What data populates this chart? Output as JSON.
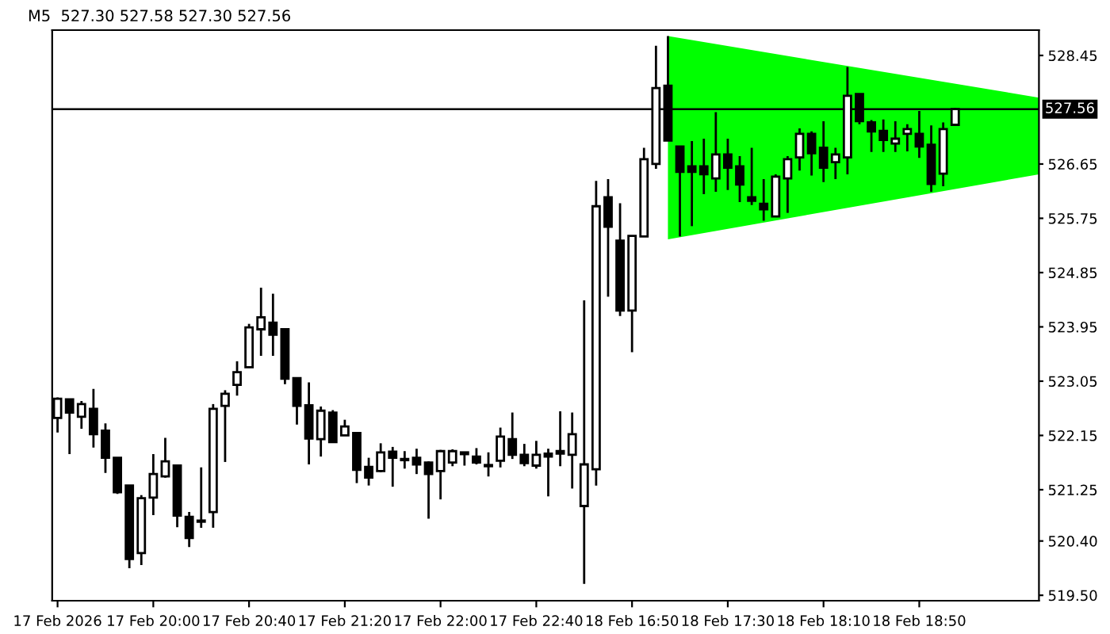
{
  "chart_data": {
    "type": "candlestick",
    "title": "M5  527.30 527.58 527.30 527.56",
    "categories": [
      "17 Feb 2026",
      null,
      null,
      null,
      null,
      null,
      null,
      null,
      "17 Feb 20:00",
      null,
      null,
      null,
      null,
      null,
      null,
      null,
      "17 Feb 20:40",
      null,
      null,
      null,
      null,
      null,
      null,
      null,
      "17 Feb 21:20",
      null,
      null,
      null,
      null,
      null,
      null,
      null,
      "17 Feb 22:00",
      null,
      null,
      null,
      null,
      null,
      null,
      null,
      "17 Feb 22:40",
      null,
      null,
      null,
      null,
      null,
      null,
      null,
      "18 Feb 16:50",
      null,
      null,
      null,
      null,
      null,
      null,
      null,
      "18 Feb 17:30",
      null,
      null,
      null,
      null,
      null,
      null,
      null,
      "18 Feb 18:10",
      null,
      null,
      null,
      null,
      null,
      null,
      null,
      "18 Feb 18:50",
      null,
      null,
      null,
      null,
      null,
      null,
      null,
      null,
      null,
      null
    ],
    "color": "#000000",
    "ohlc": [
      [
        522.44,
        522.78,
        522.2,
        522.76
      ],
      [
        522.75,
        522.76,
        521.84,
        522.53
      ],
      [
        522.46,
        522.72,
        522.26,
        522.67
      ],
      [
        522.59,
        522.92,
        521.95,
        522.17
      ],
      [
        522.23,
        522.35,
        521.53,
        521.78
      ],
      [
        521.78,
        521.78,
        521.18,
        521.21
      ],
      [
        521.32,
        521.32,
        519.95,
        520.1
      ],
      [
        520.2,
        521.16,
        520.0,
        521.11
      ],
      [
        521.12,
        521.84,
        520.83,
        521.51
      ],
      [
        521.47,
        522.11,
        521.45,
        521.72
      ],
      [
        521.65,
        521.66,
        520.63,
        520.82
      ],
      [
        520.8,
        520.88,
        520.3,
        520.45
      ],
      [
        520.72,
        521.62,
        520.62,
        520.74
      ],
      [
        520.88,
        522.67,
        520.62,
        522.59
      ],
      [
        522.64,
        522.9,
        521.71,
        522.84
      ],
      [
        522.99,
        523.38,
        522.81,
        523.2
      ],
      [
        523.28,
        524.0,
        523.28,
        523.94
      ],
      [
        523.91,
        524.6,
        523.47,
        524.11
      ],
      [
        524.02,
        524.5,
        523.47,
        523.82
      ],
      [
        523.91,
        523.91,
        523.0,
        523.09
      ],
      [
        523.1,
        523.1,
        522.33,
        522.64
      ],
      [
        522.65,
        523.03,
        521.67,
        522.1
      ],
      [
        522.09,
        522.63,
        521.8,
        522.56
      ],
      [
        522.53,
        522.57,
        522.04,
        522.04
      ],
      [
        522.15,
        522.41,
        522.15,
        522.3
      ],
      [
        522.19,
        522.19,
        521.36,
        521.58
      ],
      [
        521.63,
        521.78,
        521.32,
        521.45
      ],
      [
        521.56,
        522.02,
        521.54,
        521.87
      ],
      [
        521.88,
        521.96,
        521.3,
        521.78
      ],
      [
        521.76,
        521.89,
        521.6,
        521.74
      ],
      [
        521.78,
        521.93,
        521.51,
        521.67
      ],
      [
        521.7,
        521.72,
        520.77,
        521.51
      ],
      [
        521.56,
        521.91,
        521.09,
        521.89
      ],
      [
        521.7,
        521.92,
        521.64,
        521.89
      ],
      [
        521.87,
        521.88,
        521.65,
        521.84
      ],
      [
        521.8,
        521.94,
        521.67,
        521.7
      ],
      [
        521.66,
        521.87,
        521.47,
        521.64
      ],
      [
        521.73,
        522.28,
        521.62,
        522.13
      ],
      [
        522.09,
        522.53,
        521.76,
        521.83
      ],
      [
        521.83,
        522.01,
        521.64,
        521.69
      ],
      [
        521.65,
        522.06,
        521.6,
        521.83
      ],
      [
        521.85,
        521.93,
        521.14,
        521.8
      ],
      [
        521.89,
        522.55,
        521.64,
        521.85
      ],
      [
        521.83,
        522.53,
        521.27,
        522.17
      ],
      [
        520.98,
        524.39,
        519.69,
        521.67
      ],
      [
        521.59,
        526.37,
        521.32,
        525.95
      ],
      [
        526.1,
        526.4,
        524.45,
        525.61
      ],
      [
        525.38,
        526.0,
        524.13,
        524.22
      ],
      [
        524.22,
        525.46,
        523.53,
        525.46
      ],
      [
        525.45,
        526.92,
        525.45,
        526.73
      ],
      [
        526.65,
        528.61,
        526.57,
        527.91
      ],
      [
        527.95,
        528.77,
        527.04,
        527.04
      ],
      [
        526.94,
        526.94,
        525.45,
        526.52
      ],
      [
        526.61,
        527.03,
        525.62,
        526.52
      ],
      [
        526.61,
        527.07,
        526.15,
        526.48
      ],
      [
        526.41,
        527.51,
        526.19,
        526.81
      ],
      [
        526.81,
        527.07,
        526.22,
        526.59
      ],
      [
        526.61,
        526.78,
        526.02,
        526.31
      ],
      [
        526.1,
        526.92,
        525.97,
        526.04
      ],
      [
        525.99,
        526.4,
        525.71,
        525.9
      ],
      [
        525.78,
        526.48,
        525.78,
        526.44
      ],
      [
        526.41,
        526.78,
        525.84,
        526.73
      ],
      [
        526.76,
        527.24,
        526.54,
        527.15
      ],
      [
        527.15,
        527.19,
        526.46,
        526.83
      ],
      [
        526.92,
        527.36,
        526.35,
        526.59
      ],
      [
        526.68,
        526.92,
        526.4,
        526.81
      ],
      [
        526.76,
        528.26,
        526.48,
        527.78
      ],
      [
        527.81,
        527.81,
        527.31,
        527.36
      ],
      [
        527.34,
        527.38,
        526.85,
        527.19
      ],
      [
        527.2,
        527.39,
        526.85,
        527.05
      ],
      [
        526.99,
        527.36,
        526.85,
        527.07
      ],
      [
        527.15,
        527.31,
        526.86,
        527.23
      ],
      [
        527.15,
        527.53,
        526.75,
        526.94
      ],
      [
        526.97,
        527.29,
        526.19,
        526.32
      ],
      [
        526.49,
        527.34,
        526.28,
        527.23
      ],
      [
        527.3,
        527.58,
        527.3,
        527.56
      ],
      null,
      null,
      null,
      null,
      null,
      null,
      null
    ],
    "series": [
      {
        "type": "area",
        "color": "#00ff00",
        "values": [
          null,
          null,
          null,
          null,
          null,
          null,
          null,
          null,
          null,
          null,
          null,
          null,
          null,
          null,
          null,
          null,
          null,
          null,
          null,
          null,
          null,
          null,
          null,
          null,
          null,
          null,
          null,
          null,
          null,
          null,
          null,
          null,
          null,
          null,
          null,
          null,
          null,
          null,
          null,
          null,
          null,
          null,
          null,
          null,
          null,
          null,
          null,
          null,
          null,
          null,
          null,
          null,
          null,
          null,
          null,
          null,
          null,
          null,
          null,
          null,
          null,
          null,
          null,
          null,
          null,
          null,
          null,
          null,
          null,
          null,
          null,
          null,
          null,
          null,
          null,
          null,
          null,
          null,
          null,
          null,
          null,
          null,
          null
        ],
        "lower": [
          null,
          null,
          null,
          null,
          null,
          null,
          null,
          null,
          null,
          null,
          null,
          null,
          null,
          null,
          null,
          null,
          null,
          null,
          null,
          null,
          null,
          null,
          null,
          null,
          null,
          null,
          null,
          null,
          null,
          null,
          null,
          null,
          null,
          null,
          null,
          null,
          null,
          null,
          null,
          null,
          null,
          null,
          null,
          null,
          null,
          null,
          null,
          null,
          null,
          null,
          null,
          525.4,
          null,
          null,
          null,
          null,
          null,
          null,
          null,
          null,
          null,
          null,
          null,
          null,
          null,
          null,
          null,
          null,
          null,
          null,
          null,
          null,
          null,
          null,
          null,
          null,
          null,
          null,
          null,
          null,
          null,
          null,
          526.48
        ],
        "upper": [
          null,
          null,
          null,
          null,
          null,
          null,
          null,
          null,
          null,
          null,
          null,
          null,
          null,
          null,
          null,
          null,
          null,
          null,
          null,
          null,
          null,
          null,
          null,
          null,
          null,
          null,
          null,
          null,
          null,
          null,
          null,
          null,
          null,
          null,
          null,
          null,
          null,
          null,
          null,
          null,
          null,
          null,
          null,
          null,
          null,
          null,
          null,
          null,
          null,
          null,
          null,
          528.77,
          null,
          null,
          null,
          null,
          null,
          null,
          null,
          null,
          null,
          null,
          null,
          null,
          null,
          null,
          null,
          null,
          null,
          null,
          null,
          null,
          null,
          null,
          null,
          null,
          null,
          null,
          null,
          null,
          null,
          null,
          527.75
        ]
      }
    ],
    "ylim": [
      519.41,
      528.87
    ],
    "yticks": [
      {
        "value": 519.5,
        "label": "519.50"
      },
      {
        "value": 520.4,
        "label": "520.40"
      },
      521.25,
      522.15,
      523.05,
      523.95,
      524.85,
      525.75,
      526.65,
      528.45
    ],
    "ref_lines": [
      {
        "axis": "y",
        "value": 527.56,
        "label": "527.56",
        "color": "#000000"
      }
    ],
    "grid": false,
    "legend": false
  }
}
